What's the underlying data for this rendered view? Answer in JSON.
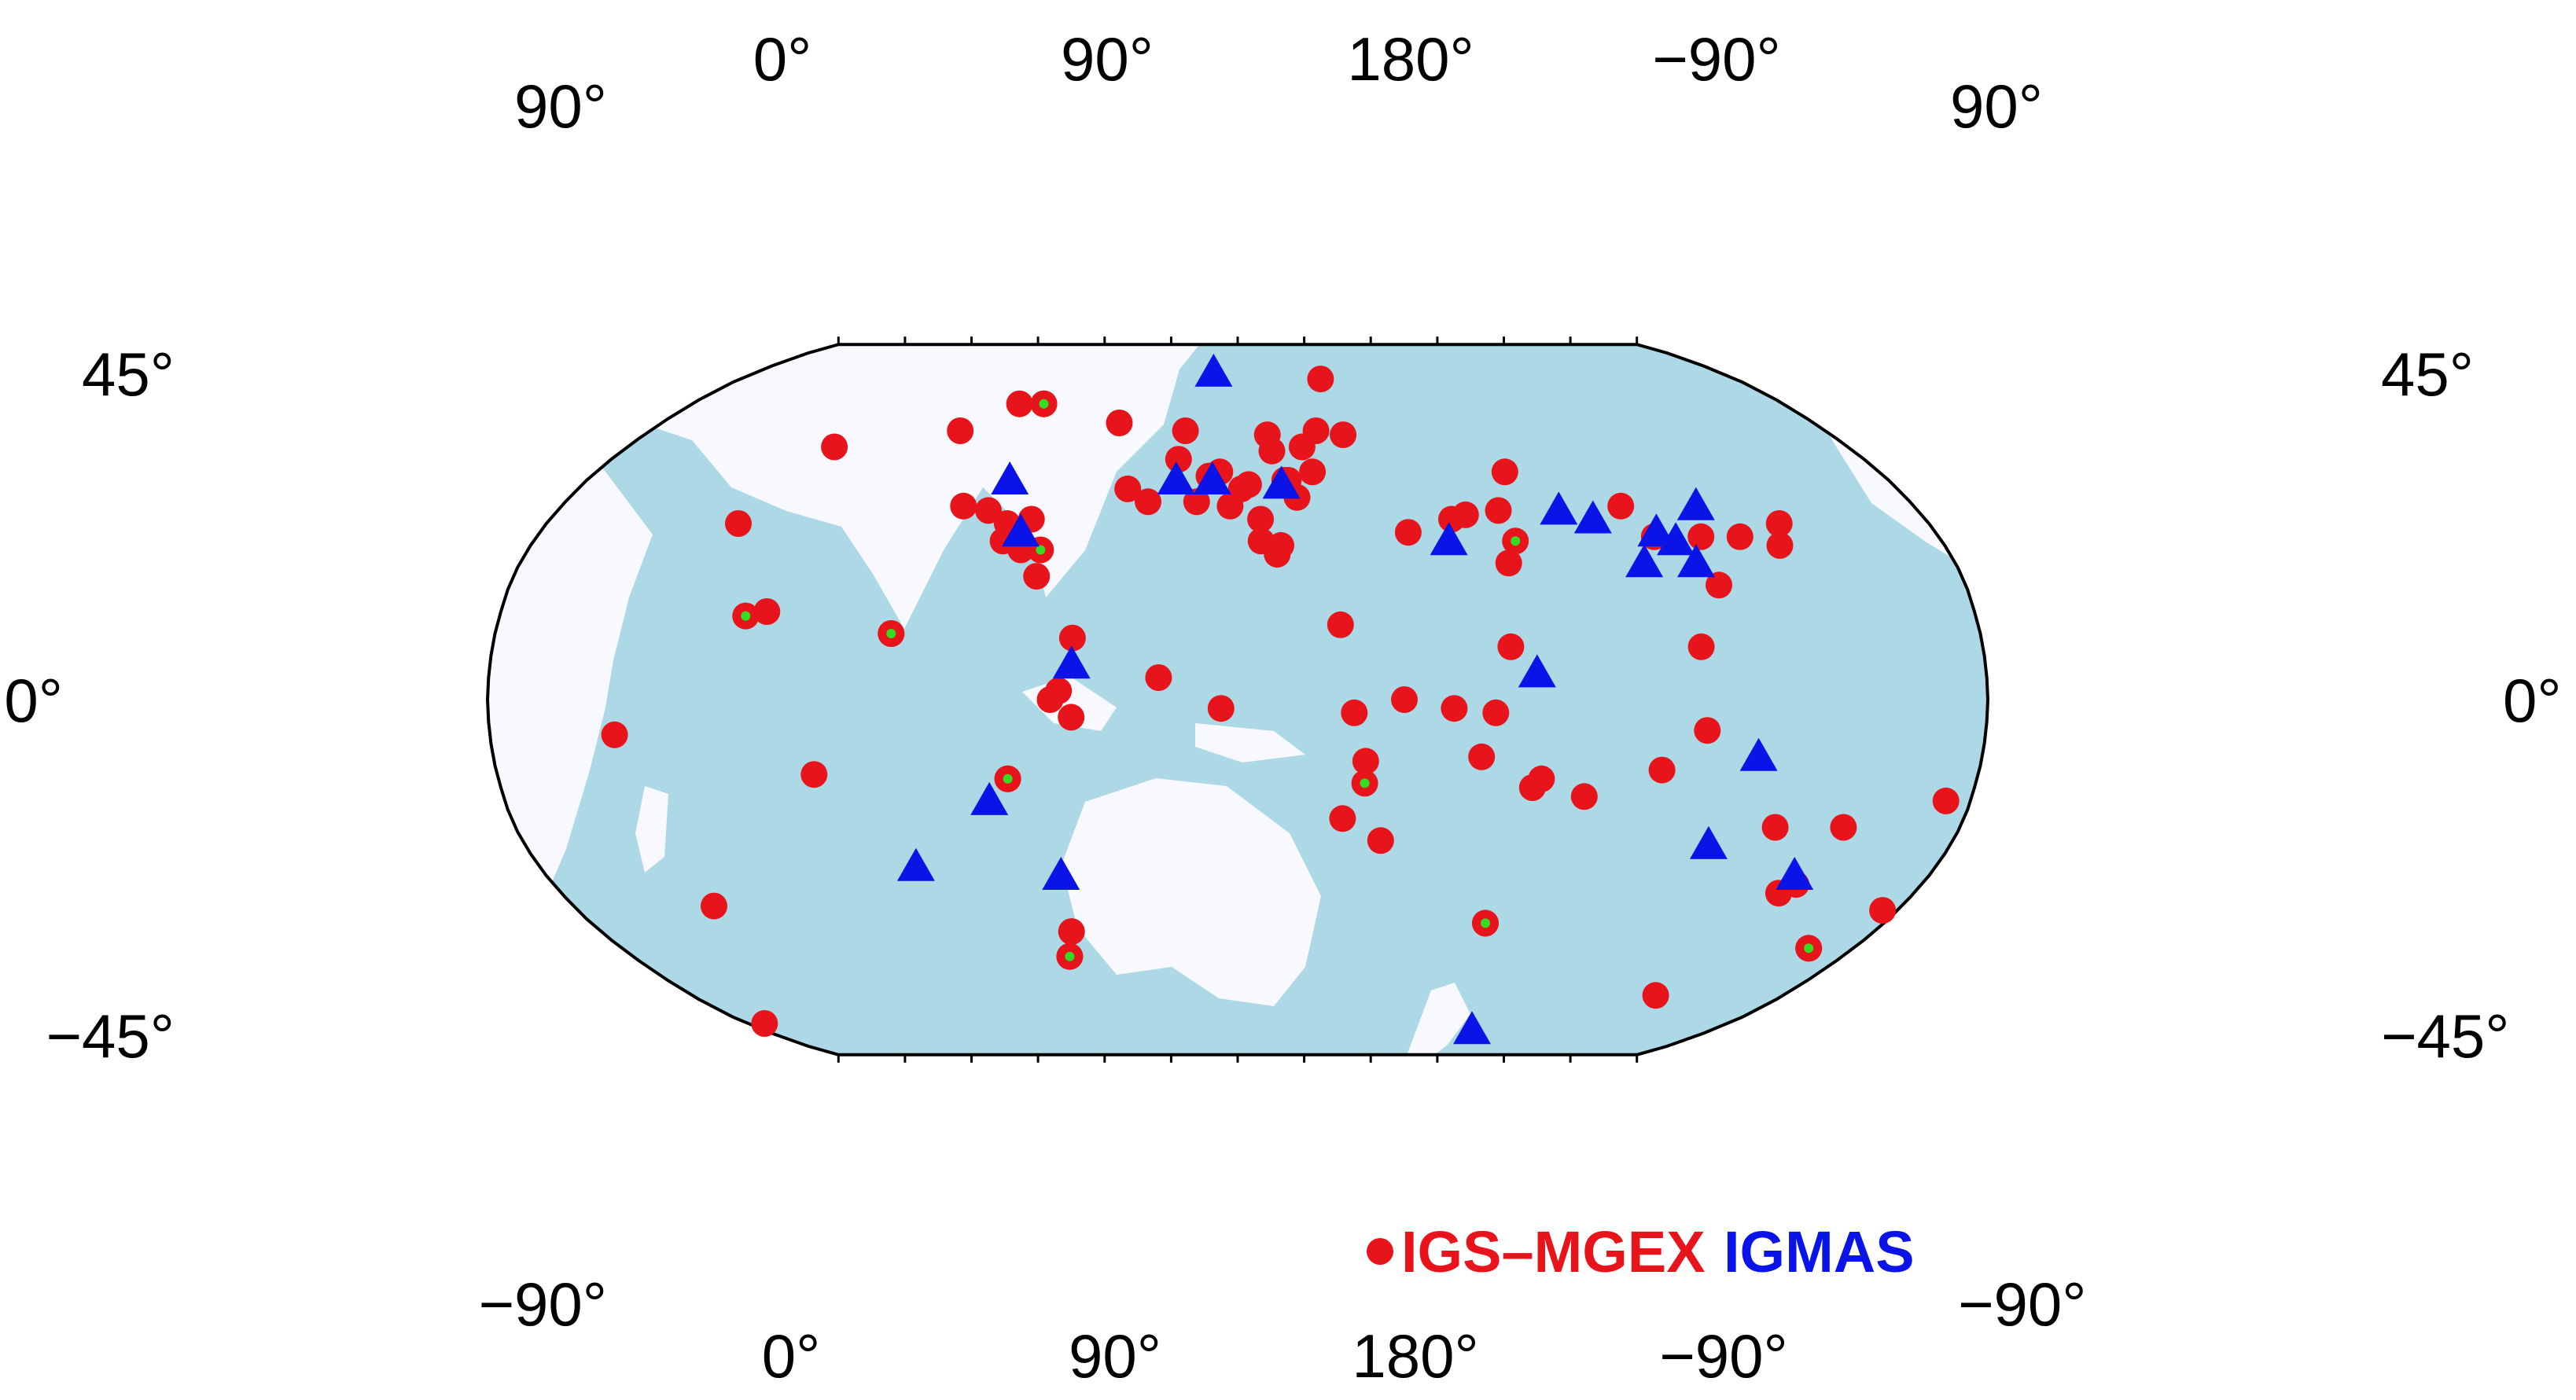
{
  "map": {
    "projection": "Robinson (Pacific-centered, central meridian ~165°E)",
    "colors": {
      "ocean": "#add8e6",
      "land": "#f8f8ff",
      "igs_mgex": "#e8141b",
      "igmas": "#0a14e6",
      "highlight_dot": "#33dd22",
      "frame": "#000000"
    },
    "top_lon_labels": [
      "0°",
      "90°",
      "180°",
      "−90°"
    ],
    "bottom_lon_labels": [
      "0°",
      "90°",
      "180°",
      "−90°"
    ],
    "corner_labels": {
      "top_left": "90°",
      "top_right": "90°",
      "bottom_left": "−90°",
      "bottom_right": "−90°"
    },
    "left_lat_labels": [
      "45°",
      "0°",
      "−45°"
    ],
    "right_lat_labels": [
      "45°",
      "0°",
      "−45°"
    ],
    "legend": {
      "igs_label": "IGS–MGEX",
      "igmas_label": "IGMAS"
    },
    "igs_stations": [
      [
        -64,
        69
      ],
      [
        -72,
        69
      ],
      [
        -37,
        64
      ],
      [
        -16,
        62
      ],
      [
        -17,
        55
      ],
      [
        -5,
        52
      ],
      [
        1,
        48
      ],
      [
        -11,
        45
      ],
      [
        -2,
        44
      ],
      [
        -8,
        51
      ],
      [
        3,
        49
      ],
      [
        13,
        50
      ],
      [
        19,
        58
      ],
      [
        10,
        57
      ],
      [
        9,
        61
      ],
      [
        24,
        62
      ],
      [
        32,
        61
      ],
      [
        30,
        76
      ],
      [
        21,
        52
      ],
      [
        16,
        46
      ],
      [
        14,
        50
      ],
      [
        -24,
        45
      ],
      [
        -66,
        43
      ],
      [
        -130,
        40
      ],
      [
        -50,
        28
      ],
      [
        -84,
        15
      ],
      [
        44,
        38
      ],
      [
        6,
        41
      ],
      [
        6,
        36
      ],
      [
        11,
        35
      ],
      [
        10,
        33
      ],
      [
        25,
        17
      ],
      [
        56,
        41
      ],
      [
        60,
        42
      ],
      [
        69,
        43
      ],
      [
        68,
        31
      ],
      [
        75,
        52
      ],
      [
        66,
        12
      ],
      [
        102,
        44
      ],
      [
        107,
        37
      ],
      [
        119,
        37
      ],
      [
        119,
        26
      ],
      [
        112,
        12
      ],
      [
        129,
        37
      ],
      [
        138,
        35
      ],
      [
        141,
        40
      ],
      [
        -4,
        -2
      ],
      [
        -40,
        -4
      ],
      [
        -45,
        0
      ],
      [
        40,
        0
      ],
      [
        28,
        -3
      ],
      [
        31,
        -14
      ],
      [
        36,
        -32
      ],
      [
        26,
        -27
      ],
      [
        52,
        -2
      ],
      [
        62,
        -3
      ],
      [
        59,
        -13
      ],
      [
        72,
        -20
      ],
      [
        74,
        -18
      ],
      [
        85,
        -22
      ],
      [
        103,
        -16
      ],
      [
        113,
        -7
      ],
      [
        134,
        -29
      ],
      [
        151,
        -29
      ],
      [
        147,
        -42
      ],
      [
        144,
        -44
      ],
      [
        174,
        -23
      ],
      [
        176,
        -48
      ],
      [
        210,
        -8
      ],
      [
        218,
        -47
      ],
      [
        241,
        58
      ],
      [
        245,
        20
      ],
      [
        240,
        19
      ],
      [
        257,
        -17
      ],
      [
        275,
        62
      ],
      [
        287,
        44
      ],
      [
        300,
        40
      ],
      [
        302,
        37
      ],
      [
        305,
        34
      ],
      [
        306,
        41
      ],
      [
        300,
        36
      ],
      [
        330,
        48
      ],
      [
        320,
        14
      ],
      [
        341,
        5
      ],
      [
        317,
        2
      ],
      [
        304,
        -18
      ],
      [
        313,
        -53
      ],
      [
        310,
        -59
      ],
      [
        138,
        -69
      ],
      [
        167,
        -57
      ],
      [
        186,
        -77
      ],
      [
        69,
        -51
      ]
    ],
    "igs_highlighted": [
      [
        -64,
        69
      ],
      [
        71,
        36
      ],
      [
        31,
        -19
      ],
      [
        240,
        19
      ],
      [
        69,
        -51
      ],
      [
        167,
        -57
      ],
      [
        304,
        -18
      ],
      [
        310,
        -59
      ],
      [
        310,
        34
      ],
      [
        -84,
        15
      ]
    ],
    "igmas_stations": [
      [
        -9,
        78
      ],
      [
        -7,
        50
      ],
      [
        -17,
        50
      ],
      [
        -56,
        38
      ],
      [
        -40,
        8
      ],
      [
        12,
        49
      ],
      [
        54,
        36
      ],
      [
        85,
        43
      ],
      [
        93,
        41
      ],
      [
        102,
        31
      ],
      [
        115,
        31
      ],
      [
        108,
        38
      ],
      [
        122,
        44
      ],
      [
        112,
        36
      ],
      [
        126,
        -13
      ],
      [
        119,
        -33
      ],
      [
        145,
        -40
      ],
      [
        -46,
        -40
      ],
      [
        72,
        6
      ],
      [
        297,
        50
      ],
      [
        277,
        -38
      ],
      [
        299,
        -23
      ],
      [
        89,
        -79
      ]
    ]
  }
}
